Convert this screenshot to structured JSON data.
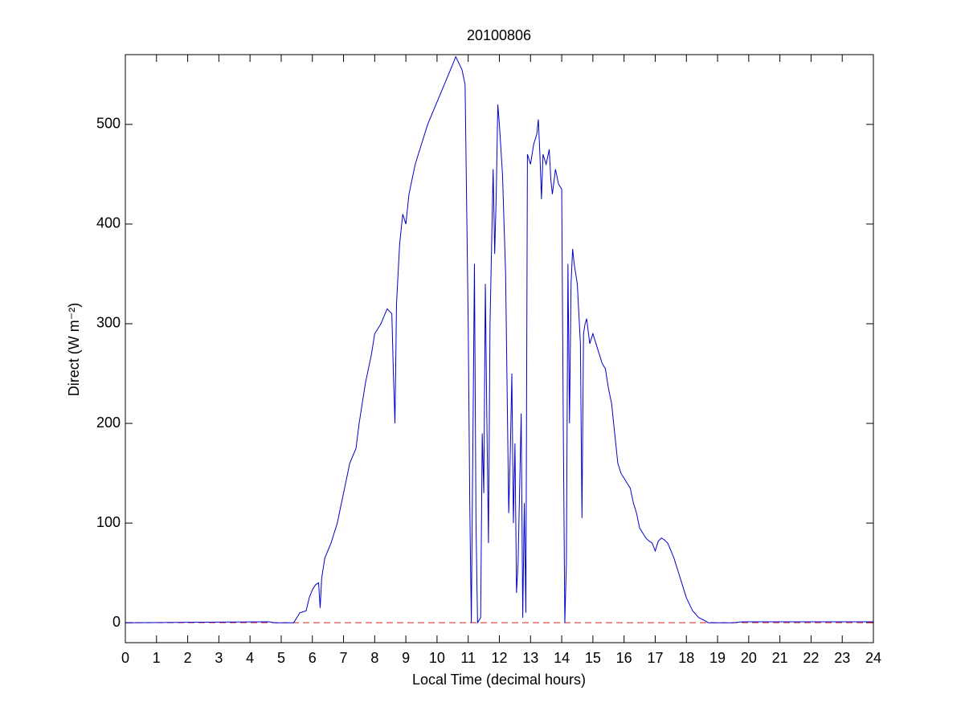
{
  "chart_data": {
    "type": "line",
    "title": "20100806",
    "xlabel": "Local Time (decimal hours)",
    "ylabel": "Direct (W m⁻²)",
    "xlim": [
      0,
      24
    ],
    "xticks": [
      0,
      1,
      2,
      3,
      4,
      5,
      6,
      7,
      8,
      9,
      10,
      11,
      12,
      13,
      14,
      15,
      16,
      17,
      18,
      19,
      20,
      21,
      22,
      23,
      24
    ],
    "ylim": [
      -20,
      570
    ],
    "yticks": [
      0,
      100,
      200,
      300,
      400,
      500
    ],
    "grid": false,
    "reference_line": {
      "y": 0,
      "color": "#cc2222",
      "style": "dashed"
    },
    "series": [
      {
        "color": "#0000cc",
        "x": [
          0,
          4.6,
          4.8,
          5.4,
          5.5,
          5.6,
          5.8,
          5.9,
          6.0,
          6.1,
          6.2,
          6.25,
          6.3,
          6.4,
          6.6,
          6.8,
          7.0,
          7.2,
          7.4,
          7.5,
          7.7,
          7.9,
          8.0,
          8.2,
          8.4,
          8.55,
          8.6,
          8.65,
          8.7,
          8.8,
          8.9,
          9.0,
          9.1,
          9.3,
          9.5,
          9.7,
          9.9,
          10.1,
          10.3,
          10.5,
          10.6,
          10.8,
          10.9,
          11.0,
          11.05,
          11.1,
          11.2,
          11.25,
          11.3,
          11.4,
          11.45,
          11.5,
          11.55,
          11.6,
          11.65,
          11.7,
          11.8,
          11.85,
          11.9,
          11.95,
          12.0,
          12.1,
          12.2,
          12.3,
          12.35,
          12.4,
          12.45,
          12.5,
          12.55,
          12.6,
          12.7,
          12.75,
          12.8,
          12.85,
          12.9,
          13.0,
          13.1,
          13.2,
          13.25,
          13.3,
          13.35,
          13.4,
          13.5,
          13.6,
          13.65,
          13.7,
          13.8,
          13.9,
          14.0,
          14.05,
          14.1,
          14.15,
          14.2,
          14.25,
          14.3,
          14.35,
          14.4,
          14.5,
          14.6,
          14.65,
          14.7,
          14.75,
          14.8,
          14.9,
          15.0,
          15.1,
          15.2,
          15.3,
          15.4,
          15.5,
          15.6,
          15.7,
          15.8,
          15.9,
          16.0,
          16.1,
          16.2,
          16.3,
          16.4,
          16.5,
          16.6,
          16.7,
          16.8,
          16.9,
          17.0,
          17.1,
          17.2,
          17.3,
          17.4,
          17.6,
          17.8,
          18.0,
          18.2,
          18.4,
          18.6,
          18.7,
          19.5,
          19.8,
          24
        ],
        "values": [
          0,
          1,
          0,
          0,
          5,
          10,
          12,
          25,
          33,
          38,
          40,
          15,
          45,
          65,
          80,
          100,
          130,
          160,
          175,
          200,
          240,
          270,
          290,
          300,
          315,
          310,
          250,
          200,
          320,
          380,
          410,
          400,
          430,
          460,
          480,
          500,
          515,
          530,
          545,
          560,
          568,
          555,
          540,
          300,
          120,
          0,
          360,
          100,
          0,
          5,
          190,
          130,
          340,
          200,
          80,
          300,
          455,
          370,
          430,
          520,
          500,
          450,
          350,
          110,
          170,
          250,
          100,
          180,
          30,
          60,
          210,
          5,
          120,
          10,
          470,
          460,
          480,
          490,
          505,
          470,
          425,
          470,
          460,
          475,
          445,
          430,
          455,
          440,
          435,
          200,
          0,
          60,
          360,
          200,
          340,
          375,
          360,
          340,
          280,
          105,
          290,
          300,
          305,
          280,
          290,
          280,
          270,
          260,
          255,
          235,
          220,
          190,
          160,
          150,
          145,
          140,
          135,
          120,
          110,
          95,
          90,
          85,
          82,
          80,
          72,
          82,
          85,
          83,
          80,
          65,
          45,
          25,
          12,
          5,
          2,
          0,
          0,
          1,
          1
        ]
      }
    ]
  }
}
